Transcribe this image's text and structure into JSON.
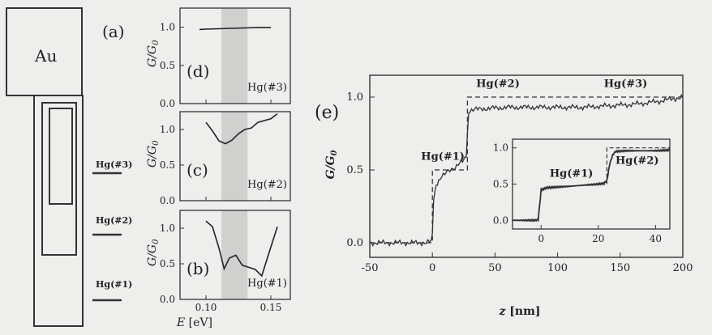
{
  "figure": {
    "schematic": {
      "panel_label": "(a)",
      "electrode_label": "Au",
      "levels": [
        "Hg(#3)",
        "Hg(#2)",
        "Hg(#1)"
      ]
    },
    "small_panels": {
      "ylabel": "G/G",
      "ylabel_sub": "0",
      "xlabel_italic": "E",
      "xlabel_unit": " [eV]",
      "xticks": [
        "0.10",
        "0.15"
      ],
      "yticks": [
        "0.0",
        "0.5",
        "1.0"
      ]
    },
    "big_panel": {
      "panel_label": "(e)",
      "ylabel": "G/G",
      "ylabel_sub": "0",
      "xlabel_italic": "z",
      "xlabel_unit": " [nm]",
      "xticks": [
        "-50",
        "0",
        "50",
        "100",
        "150",
        "200"
      ],
      "yticks": [
        "0.0",
        "0.5",
        "1.0"
      ],
      "annotations": [
        "Hg(#1)",
        "Hg(#2)",
        "Hg(#3)"
      ],
      "inset": {
        "xticks": [
          "0",
          "20",
          "40"
        ],
        "yticks": [
          "0.0",
          "0.5",
          "1.0"
        ],
        "annotations": [
          "Hg(#1)",
          "Hg(#2)"
        ]
      }
    }
  },
  "chart_data": [
    {
      "type": "line",
      "panel": "(d)",
      "annotation": "Hg(#3)",
      "xlim": [
        0.08,
        0.165
      ],
      "ylim": [
        0.0,
        1.25
      ],
      "shaded_band": [
        0.112,
        0.132
      ],
      "series": [
        {
          "x": [
            0.095,
            0.1,
            0.11,
            0.12,
            0.13,
            0.14,
            0.15
          ],
          "y": [
            0.97,
            0.975,
            0.98,
            0.985,
            0.99,
            0.995,
            0.995
          ]
        }
      ]
    },
    {
      "type": "line",
      "panel": "(c)",
      "annotation": "Hg(#2)",
      "xlim": [
        0.08,
        0.165
      ],
      "ylim": [
        0.0,
        1.25
      ],
      "shaded_band": [
        0.112,
        0.132
      ],
      "series": [
        {
          "x": [
            0.1,
            0.105,
            0.11,
            0.115,
            0.12,
            0.125,
            0.13,
            0.135,
            0.14,
            0.15,
            0.155
          ],
          "y": [
            1.1,
            0.98,
            0.84,
            0.8,
            0.85,
            0.94,
            1.0,
            1.02,
            1.1,
            1.15,
            1.22
          ]
        }
      ]
    },
    {
      "type": "line",
      "panel": "(b)",
      "annotation": "Hg(#1)",
      "xlim": [
        0.08,
        0.165
      ],
      "ylim": [
        0.0,
        1.25
      ],
      "shaded_band": [
        0.112,
        0.132
      ],
      "series": [
        {
          "x": [
            0.1,
            0.105,
            0.11,
            0.114,
            0.118,
            0.123,
            0.128,
            0.133,
            0.138,
            0.143,
            0.148,
            0.155
          ],
          "y": [
            1.1,
            1.02,
            0.72,
            0.43,
            0.58,
            0.62,
            0.48,
            0.45,
            0.42,
            0.33,
            0.62,
            1.02
          ]
        }
      ]
    },
    {
      "type": "line",
      "panel": "(e)",
      "xlim": [
        -50,
        200
      ],
      "ylim": [
        -0.1,
        1.15
      ],
      "series": [
        {
          "name": "measured",
          "x": [
            -50,
            -20,
            -5,
            -1,
            0,
            1,
            3,
            6,
            10,
            14,
            18,
            22,
            25,
            27,
            28,
            29,
            30,
            40,
            60,
            80,
            100,
            120,
            140,
            160,
            180,
            200
          ],
          "y": [
            0.0,
            0.0,
            0.0,
            0.01,
            0.05,
            0.3,
            0.4,
            0.44,
            0.47,
            0.5,
            0.52,
            0.55,
            0.56,
            0.6,
            0.75,
            0.9,
            0.91,
            0.92,
            0.93,
            0.93,
            0.93,
            0.93,
            0.94,
            0.95,
            0.97,
            1.0
          ]
        },
        {
          "name": "dashed",
          "x": [
            -50,
            0,
            0,
            28,
            28,
            200
          ],
          "y": [
            0.0,
            0.0,
            0.5,
            0.5,
            1.0,
            1.0
          ]
        }
      ]
    },
    {
      "type": "line",
      "panel": "(e) inset",
      "xlim": [
        -10,
        45
      ],
      "ylim": [
        -0.12,
        1.12
      ],
      "series": [
        {
          "name": "measured",
          "x": [
            -10,
            -2,
            -1,
            0,
            2,
            10,
            20,
            22,
            23,
            24,
            25,
            26,
            30,
            40,
            45
          ],
          "y": [
            0.0,
            0.0,
            0.01,
            0.42,
            0.45,
            0.47,
            0.5,
            0.51,
            0.55,
            0.78,
            0.9,
            0.95,
            0.96,
            0.96,
            0.97
          ]
        },
        {
          "name": "dashed",
          "x": [
            23,
            23,
            45
          ],
          "y": [
            0.5,
            1.0,
            1.0
          ]
        }
      ]
    }
  ]
}
